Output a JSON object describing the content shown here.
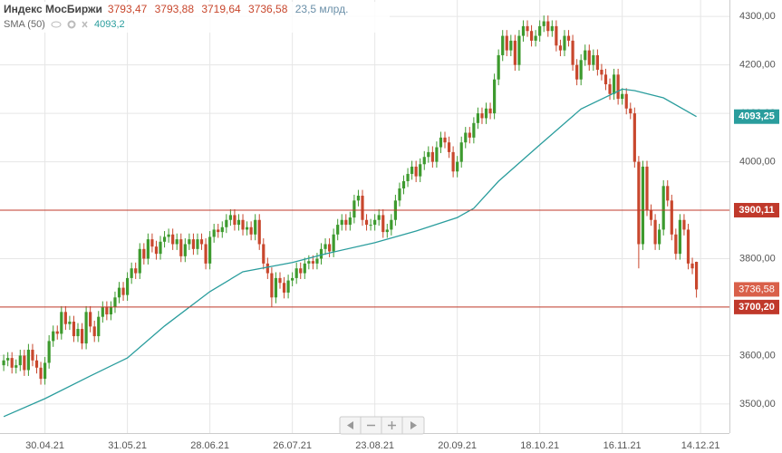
{
  "chart_data": {
    "type": "candlestick",
    "title": "Индекс МосБиржи",
    "ohlc_labels": [
      "3793,47",
      "3793,88",
      "3719,64",
      "3736,58"
    ],
    "volume_label": "23,5 млрд.",
    "up_color": "#3d9a2e",
    "down_color": "#c8472d",
    "open": [
      3580,
      3590,
      3595,
      3575,
      3580,
      3600,
      3570,
      3612,
      3590,
      3575,
      3552,
      3585,
      3630,
      3650,
      3645,
      3690,
      3665,
      3670,
      3640,
      3655,
      3625,
      3690,
      3660,
      3640,
      3680,
      3700,
      3685,
      3700,
      3720,
      3740,
      3725,
      3760,
      3780,
      3770,
      3820,
      3800,
      3840,
      3825,
      3810,
      3835,
      3845,
      3850,
      3830,
      3840,
      3805,
      3830,
      3840,
      3820,
      3840,
      3830,
      3790,
      3845,
      3860,
      3855,
      3865,
      3880,
      3890,
      3870,
      3880,
      3860,
      3865,
      3850,
      3880,
      3830,
      3790,
      3770,
      3720,
      3760,
      3750,
      3730,
      3755,
      3760,
      3780,
      3770,
      3790,
      3795,
      3790,
      3800,
      3820,
      3830,
      3815,
      3850,
      3870,
      3880,
      3870,
      3885,
      3920,
      3930,
      3880,
      3870,
      3870,
      3880,
      3890,
      3855,
      3860,
      3880,
      3920,
      3945,
      3960,
      3975,
      3990,
      3970,
      3995,
      4010,
      4020,
      4000,
      4030,
      4050,
      4040,
      4020,
      3980,
      4000,
      4040,
      4060,
      4050,
      4080,
      4100,
      4090,
      4110,
      4100,
      4170,
      4220,
      4260,
      4230,
      4250,
      4200,
      4260,
      4280,
      4270,
      4250,
      4260,
      4280,
      4290,
      4270,
      4280,
      4240,
      4230,
      4260,
      4250,
      4200,
      4170,
      4210,
      4230,
      4200,
      4220,
      4190,
      4180,
      4160,
      4140,
      4180,
      4130,
      4140,
      4110,
      4100,
      4000,
      3830,
      3990,
      3900,
      3880,
      3830,
      3860,
      3950,
      3920,
      3850,
      3810,
      3880,
      3860,
      3790,
      3793.47
    ],
    "high": [
      3602,
      3607,
      3607,
      3592,
      3612,
      3612,
      3624,
      3624,
      3602,
      3587,
      3597,
      3642,
      3662,
      3662,
      3702,
      3702,
      3682,
      3682,
      3667,
      3667,
      3702,
      3702,
      3672,
      3692,
      3712,
      3712,
      3712,
      3732,
      3752,
      3752,
      3772,
      3792,
      3792,
      3832,
      3832,
      3852,
      3852,
      3837,
      3847,
      3857,
      3862,
      3862,
      3852,
      3852,
      3842,
      3852,
      3852,
      3852,
      3852,
      3842,
      3857,
      3872,
      3872,
      3877,
      3892,
      3902,
      3902,
      3892,
      3892,
      3877,
      3877,
      3892,
      3892,
      3842,
      3802,
      3782,
      3772,
      3772,
      3762,
      3767,
      3772,
      3792,
      3792,
      3802,
      3807,
      3807,
      3812,
      3832,
      3842,
      3842,
      3862,
      3882,
      3892,
      3892,
      3897,
      3932,
      3942,
      3942,
      3892,
      3882,
      3892,
      3902,
      3902,
      3872,
      3892,
      3932,
      3957,
      3972,
      3987,
      4002,
      4002,
      4007,
      4022,
      4032,
      4032,
      4042,
      4062,
      4062,
      4052,
      4032,
      4012,
      4052,
      4072,
      4072,
      4092,
      4112,
      4112,
      4122,
      4122,
      4182,
      4232,
      4272,
      4272,
      4262,
      4262,
      4272,
      4292,
      4292,
      4282,
      4272,
      4292,
      4302,
      4302,
      4292,
      4292,
      4252,
      4272,
      4272,
      4262,
      4212,
      4222,
      4242,
      4242,
      4232,
      4232,
      4202,
      4192,
      4172,
      4192,
      4192,
      4152,
      4152,
      4122,
      4112,
      4012,
      4002,
      4002,
      3912,
      3892,
      3872,
      3962,
      3962,
      3932,
      3862,
      3892,
      3892,
      3872,
      3802,
      3793.88
    ],
    "low": [
      3568,
      3578,
      3563,
      3563,
      3568,
      3558,
      3558,
      3578,
      3563,
      3540,
      3540,
      3573,
      3618,
      3633,
      3633,
      3653,
      3653,
      3628,
      3628,
      3613,
      3613,
      3648,
      3628,
      3628,
      3668,
      3673,
      3673,
      3688,
      3708,
      3713,
      3713,
      3748,
      3758,
      3758,
      3788,
      3788,
      3813,
      3798,
      3798,
      3823,
      3833,
      3818,
      3818,
      3793,
      3793,
      3818,
      3808,
      3808,
      3818,
      3778,
      3778,
      3833,
      3843,
      3843,
      3853,
      3868,
      3858,
      3858,
      3848,
      3848,
      3838,
      3838,
      3818,
      3778,
      3758,
      3700,
      3708,
      3738,
      3718,
      3718,
      3743,
      3748,
      3758,
      3758,
      3778,
      3778,
      3778,
      3788,
      3808,
      3803,
      3803,
      3838,
      3858,
      3858,
      3858,
      3873,
      3908,
      3868,
      3858,
      3858,
      3858,
      3868,
      3843,
      3843,
      3848,
      3868,
      3908,
      3933,
      3948,
      3963,
      3958,
      3958,
      3983,
      3998,
      3988,
      3988,
      4018,
      4028,
      4008,
      3968,
      3968,
      3988,
      4028,
      4038,
      4038,
      4068,
      4078,
      4078,
      4088,
      4088,
      4158,
      4208,
      4218,
      4218,
      4188,
      4188,
      4248,
      4258,
      4238,
      4238,
      4248,
      4268,
      4258,
      4258,
      4228,
      4218,
      4218,
      4238,
      4188,
      4158,
      4158,
      4198,
      4188,
      4188,
      4178,
      4168,
      4148,
      4128,
      4128,
      4118,
      4118,
      4098,
      4088,
      3988,
      3780,
      3818,
      3888,
      3868,
      3818,
      3818,
      3848,
      3908,
      3838,
      3798,
      3798,
      3848,
      3778,
      3768,
      3719.64
    ],
    "close": [
      3590,
      3595,
      3575,
      3580,
      3600,
      3570,
      3612,
      3590,
      3575,
      3552,
      3585,
      3630,
      3650,
      3645,
      3690,
      3665,
      3670,
      3640,
      3655,
      3625,
      3690,
      3660,
      3640,
      3680,
      3700,
      3685,
      3700,
      3720,
      3740,
      3725,
      3760,
      3780,
      3770,
      3820,
      3800,
      3840,
      3825,
      3810,
      3835,
      3845,
      3850,
      3830,
      3840,
      3805,
      3830,
      3840,
      3820,
      3840,
      3830,
      3790,
      3845,
      3860,
      3855,
      3865,
      3880,
      3890,
      3870,
      3880,
      3860,
      3865,
      3850,
      3880,
      3830,
      3790,
      3770,
      3720,
      3760,
      3750,
      3730,
      3755,
      3760,
      3780,
      3770,
      3790,
      3795,
      3790,
      3800,
      3820,
      3830,
      3815,
      3850,
      3870,
      3880,
      3870,
      3885,
      3920,
      3930,
      3880,
      3870,
      3870,
      3880,
      3890,
      3855,
      3860,
      3880,
      3920,
      3945,
      3960,
      3975,
      3990,
      3970,
      3995,
      4010,
      4020,
      4000,
      4030,
      4050,
      4040,
      4020,
      3980,
      4000,
      4040,
      4060,
      4050,
      4080,
      4100,
      4090,
      4110,
      4100,
      4170,
      4220,
      4260,
      4230,
      4250,
      4200,
      4260,
      4280,
      4270,
      4250,
      4260,
      4280,
      4290,
      4270,
      4280,
      4240,
      4230,
      4260,
      4250,
      4200,
      4170,
      4210,
      4230,
      4200,
      4220,
      4190,
      4180,
      4160,
      4140,
      4180,
      4130,
      4140,
      4110,
      4100,
      4000,
      3830,
      3990,
      3900,
      3880,
      3830,
      3860,
      3950,
      3920,
      3850,
      3810,
      3880,
      3860,
      3790,
      3780,
      3736.58
    ],
    "last_label": "3736,58",
    "xlim": [
      -0.9,
      176
    ],
    "xticks": [
      {
        "value": 10,
        "label": "30.04.21"
      },
      {
        "value": 30,
        "label": "31.05.21"
      },
      {
        "value": 50,
        "label": "28.06.21"
      },
      {
        "value": 70,
        "label": "26.07.21"
      },
      {
        "value": 90,
        "label": "23.08.21"
      },
      {
        "value": 110,
        "label": "20.09.21"
      },
      {
        "value": 130,
        "label": "18.10.21"
      },
      {
        "value": 150,
        "label": "16.11.21"
      },
      {
        "value": 169,
        "label": "14.12.21"
      }
    ],
    "ylim": [
      3440,
      4334
    ],
    "yticks": [
      {
        "value": 3500,
        "label": "3500,00"
      },
      {
        "value": 3600,
        "label": "3600,00"
      },
      {
        "value": 3700,
        "label": "3700,00"
      },
      {
        "value": 3800,
        "label": "3800,00"
      },
      {
        "value": 3900,
        "label": "3900,00"
      },
      {
        "value": 4000,
        "label": "4000,00"
      },
      {
        "value": 4100,
        "label": "4100,00"
      },
      {
        "value": 4200,
        "label": "4200,00"
      },
      {
        "value": 4300,
        "label": "4300,00"
      }
    ],
    "grid": true,
    "sma": {
      "name": "SMA (50)",
      "color": "#2a9d9d",
      "value_label": "4093,2",
      "tag_label": "4093,25",
      "x": [
        0,
        10,
        21,
        30,
        39,
        50,
        58,
        70,
        78,
        90,
        100,
        110,
        114,
        120,
        130,
        140,
        150,
        153,
        160,
        168
      ],
      "values": [
        3474,
        3511,
        3558,
        3595,
        3661,
        3732,
        3773,
        3792,
        3810,
        3833,
        3857,
        3885,
        3904,
        3960,
        4035,
        4109,
        4150,
        4147,
        4132,
        4093.25
      ]
    },
    "levels": [
      {
        "value": 3900.11,
        "label": "3900,11"
      },
      {
        "value": 3700.2,
        "label": "3700,20"
      }
    ],
    "level_color": "#c0392b"
  }
}
